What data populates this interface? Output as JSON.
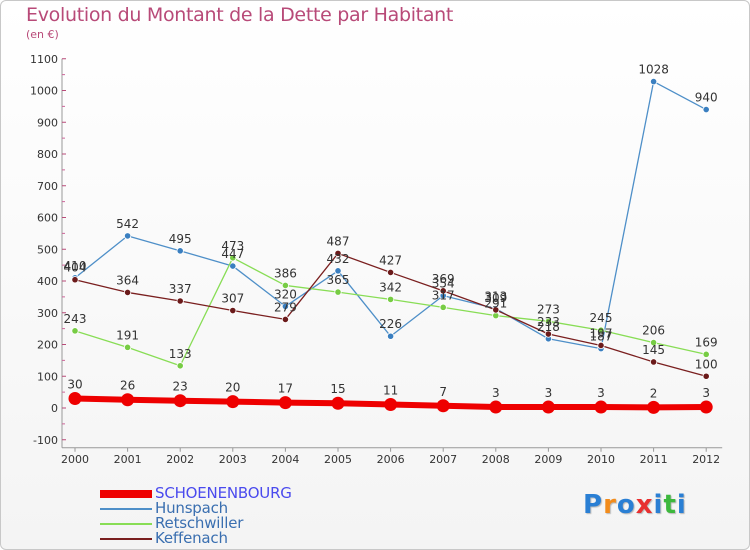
{
  "title": "Evolution du Montant de la Dette par Habitant",
  "subtitle": "(en €)",
  "logo": "Proxiti",
  "chart_data": {
    "type": "line",
    "x": [
      "2000",
      "2001",
      "2002",
      "2003",
      "2004",
      "2005",
      "2006",
      "2007",
      "2008",
      "2009",
      "2010",
      "2011",
      "2012"
    ],
    "ylim": [
      -100,
      1100
    ],
    "yticks": [
      -100,
      0,
      100,
      200,
      300,
      400,
      500,
      600,
      700,
      800,
      900,
      1000,
      1100
    ],
    "grid": false,
    "legend_position": "bottom-left",
    "series": [
      {
        "name": "SCHOENENBOURG",
        "color": "#ee0000",
        "emphasis": true,
        "values": [
          30,
          26,
          23,
          20,
          17,
          15,
          11,
          7,
          3,
          3,
          3,
          2,
          3
        ]
      },
      {
        "name": "Hunspach",
        "color": "#4e8fc8",
        "marker": "#3a7fc0",
        "values": [
          410,
          542,
          495,
          447,
          320,
          432,
          226,
          354,
          313,
          218,
          187,
          1028,
          940
        ]
      },
      {
        "name": "Retschwiller",
        "color": "#88dd55",
        "marker": "#77cc44",
        "values": [
          243,
          191,
          133,
          473,
          386,
          365,
          342,
          317,
          291,
          273,
          245,
          206,
          169
        ]
      },
      {
        "name": "Keffenach",
        "color": "#7a1f1f",
        "marker": "#6b1a1a",
        "values": [
          404,
          364,
          337,
          307,
          279,
          487,
          427,
          369,
          309,
          233,
          197,
          145,
          100
        ]
      }
    ]
  }
}
